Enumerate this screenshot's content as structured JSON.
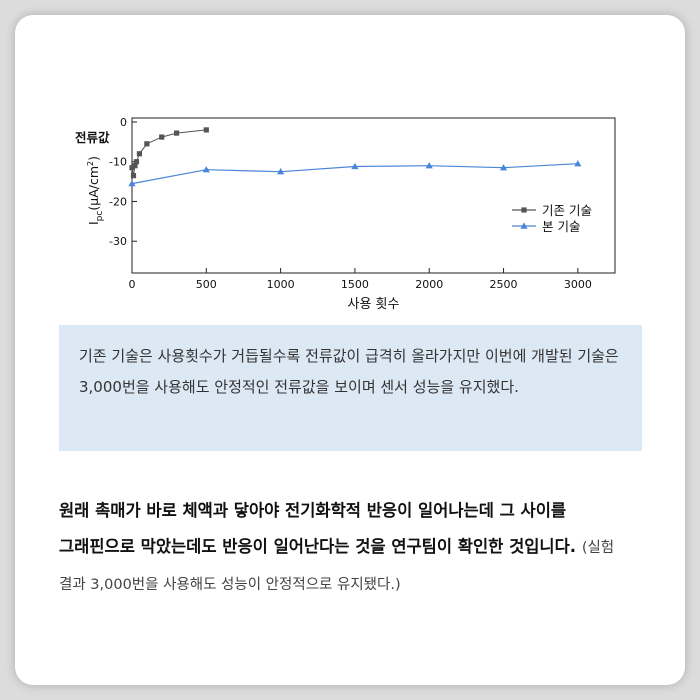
{
  "chart_data": {
    "type": "line",
    "title": "",
    "ylabel_top": "전류값",
    "ylabel_main": "I",
    "ylabel_sub": "pc",
    "ylabel_unit": "(μA/cm",
    "ylabel_sup": "2",
    "ylabel_close": ")",
    "xlabel": "사용 횟수",
    "xlim": [
      0,
      3250
    ],
    "ylim": [
      -38,
      1
    ],
    "x_ticks": [
      0,
      500,
      1000,
      1500,
      2000,
      2500,
      3000
    ],
    "x_tick_labels": [
      "0",
      "500",
      "1000",
      "1500",
      "2000",
      "2500",
      "3000"
    ],
    "y_ticks": [
      0,
      -10,
      -20,
      -30
    ],
    "y_tick_labels": [
      "0",
      "-10",
      "-20",
      "-30"
    ],
    "legend_position": "right",
    "series": [
      {
        "name": "기존 기술",
        "marker": "square",
        "color": "#555555",
        "x": [
          0,
          10,
          20,
          30,
          50,
          100,
          200,
          300,
          500
        ],
        "y": [
          -11.5,
          -13.5,
          -11.0,
          -10.0,
          -8.0,
          -5.5,
          -3.8,
          -2.8,
          -2.0
        ]
      },
      {
        "name": "본 기술",
        "marker": "triangle",
        "color": "#4a86d8",
        "x": [
          0,
          500,
          1000,
          1500,
          2000,
          2500,
          3000
        ],
        "y": [
          -15.5,
          -12.0,
          -12.5,
          -11.2,
          -11.0,
          -11.5,
          -10.5
        ]
      }
    ]
  },
  "caption": "기존 기술은 사용횟수가 거듭될수록 전류값이 급격히 올라가지만 이번에 개발된 기술은 3,000번을 사용해도 안정적인 전류값을 보이며 센서 성능을 유지했다.",
  "body": {
    "main": "원래 촉매가 바로 체액과 닿아야 전기화학적 반응이 일어나는데 그 사이를 그래핀으로 막았는데도 반응이 일어난다는 것을 연구팀이 확인한 것입니다.",
    "note": "(실험 결과 3,000번을 사용해도 성능이 안정적으로 유지됐다.)"
  }
}
